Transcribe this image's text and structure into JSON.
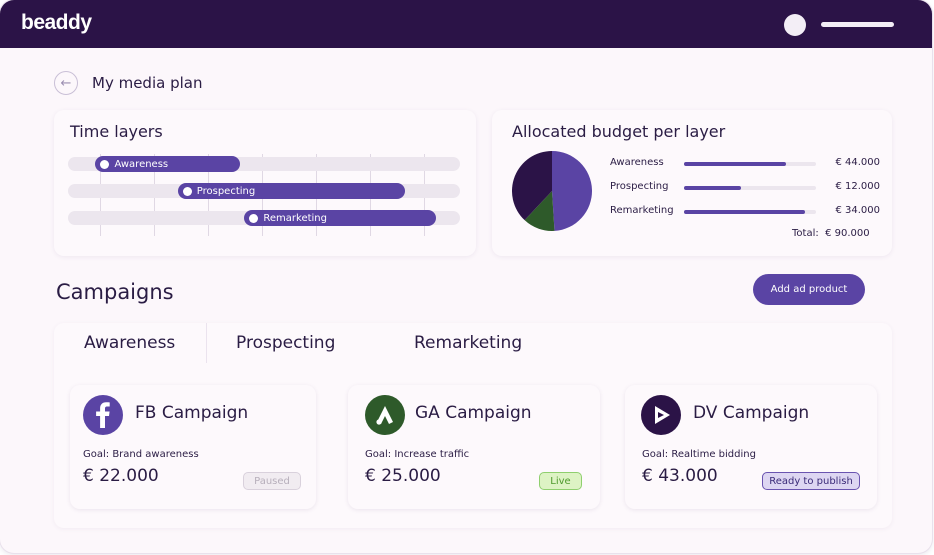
{
  "app": {
    "logo": "beaddy"
  },
  "header": {
    "title": "My media plan"
  },
  "time_layers": {
    "title": "Time layers",
    "bars": [
      {
        "label": "Awareness",
        "start": 0.07,
        "end": 0.44
      },
      {
        "label": "Prospecting",
        "start": 0.28,
        "end": 0.86
      },
      {
        "label": "Remarketing",
        "start": 0.45,
        "end": 0.94
      }
    ]
  },
  "budget": {
    "title": "Allocated budget per layer",
    "rows": [
      {
        "label": "Awareness",
        "amount": "€ 44.000",
        "fill": 0.77
      },
      {
        "label": "Prospecting",
        "amount": "€ 12.000",
        "fill": 0.43
      },
      {
        "label": "Remarketing",
        "amount": "€ 34.000",
        "fill": 0.92
      }
    ],
    "total_label": "Total:",
    "total_amount": "€ 90.000",
    "pie_colors": [
      "#5a44a4",
      "#2e5a2a",
      "#2b1347"
    ],
    "pie_fractions": [
      0.49,
      0.13,
      0.38
    ]
  },
  "campaigns": {
    "title": "Campaigns",
    "add_button": "Add ad product",
    "tabs": [
      "Awareness",
      "Prospecting",
      "Remarketing"
    ],
    "active_tab": 0,
    "cards": [
      {
        "name": "FB Campaign",
        "icon": "facebook-icon",
        "goal": "Goal: Brand awareness",
        "price": "€ 22.000",
        "status": "Paused"
      },
      {
        "name": "GA Campaign",
        "icon": "google-ads-icon",
        "goal": "Goal: Increase traffic",
        "price": "€ 25.000",
        "status": "Live"
      },
      {
        "name": "DV Campaign",
        "icon": "display-video-icon",
        "goal": "Goal: Realtime bidding",
        "price": "€ 43.000",
        "status": "Ready to publish"
      }
    ]
  },
  "colors": {
    "accent": "#5a44a4",
    "header": "#2b1347",
    "live": "#8fcf6e"
  }
}
